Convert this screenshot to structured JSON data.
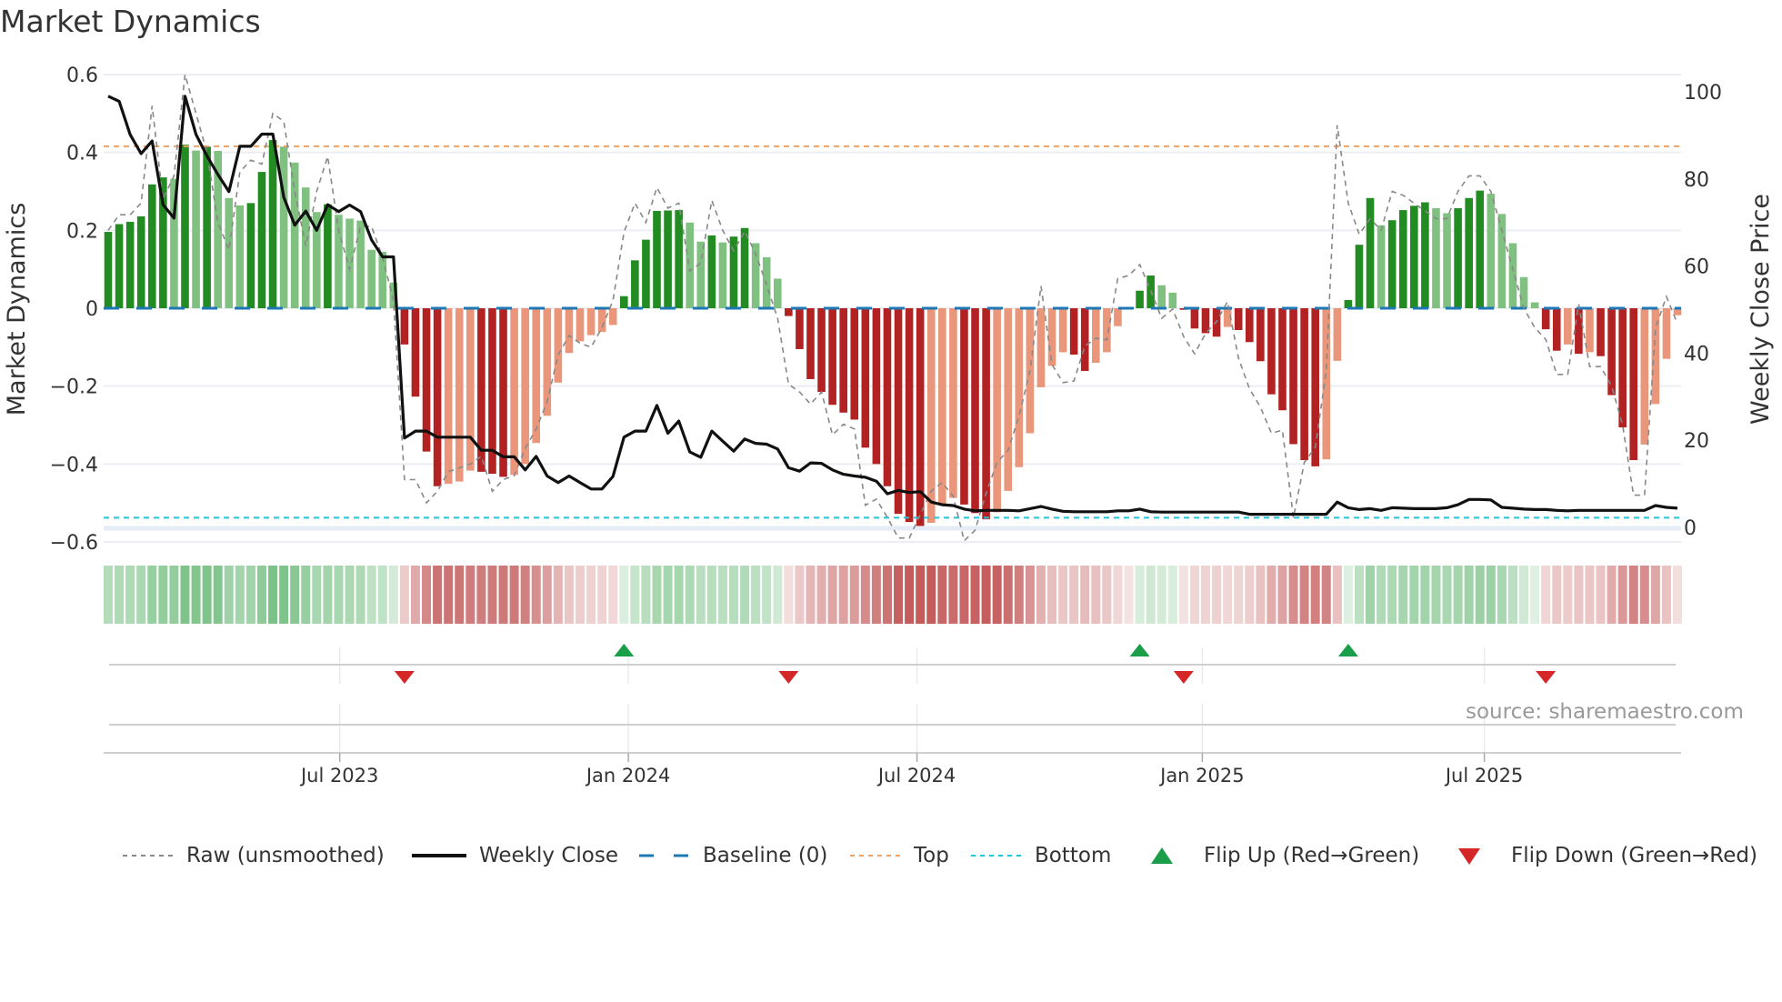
{
  "title": "Market Dynamics",
  "source": "source: sharemaestro.com",
  "colors": {
    "bar_green_dark": "#228b22",
    "bar_green_light": "#80c080",
    "bar_red_dark": "#b22222",
    "bar_red_light": "#e9967a",
    "heat_green": "#5fb56e",
    "heat_red": "#c45c5c",
    "raw": "#888888",
    "close": "#111111",
    "baseline": "#1f77b4",
    "top": "#f0a060",
    "bottom": "#22c5d8",
    "flip_up": "#1a9e4a",
    "flip_down": "#d62728"
  },
  "legend": [
    {
      "key": "raw",
      "label": "Raw (unsmoothed)"
    },
    {
      "key": "close",
      "label": "Weekly Close"
    },
    {
      "key": "baseline",
      "label": "Baseline (0)"
    },
    {
      "key": "top",
      "label": "Top"
    },
    {
      "key": "bottom",
      "label": "Bottom"
    },
    {
      "key": "flip_up",
      "label": "Flip Up (Red→Green)"
    },
    {
      "key": "flip_down",
      "label": "Flip Down (Green→Red)"
    }
  ],
  "chart_data": {
    "type": "bar",
    "title": "Market Dynamics",
    "xlabel": "",
    "ylabel": "Market Dynamics",
    "y2label": "Weekly Close Price",
    "ylim": [
      -0.6,
      0.6
    ],
    "y2lim": [
      0,
      100
    ],
    "yticks": [
      0.6,
      0.4,
      0.2,
      0,
      -0.2,
      -0.4,
      -0.6
    ],
    "ytick_labels": [
      "0.6",
      "0.4",
      "0.2",
      "0",
      "−0.2",
      "−0.4",
      "−0.6"
    ],
    "y2ticks": [
      100,
      80,
      60,
      40,
      20,
      0
    ],
    "y2tick_labels": [
      "100",
      "80",
      "60",
      "40",
      "20",
      "0"
    ],
    "x_unit": "week index (0 = first weekly bar, early Feb 2023)",
    "xticks": [
      {
        "week": 21.1,
        "label": "Jul 2023"
      },
      {
        "week": 47.4,
        "label": "Jan 2024"
      },
      {
        "week": 73.7,
        "label": "Jul 2024"
      },
      {
        "week": 99.7,
        "label": "Jan 2025"
      },
      {
        "week": 125.4,
        "label": "Jul 2025"
      }
    ],
    "top_level": 0.416,
    "bottom_level": -0.538,
    "baseline": 0,
    "grid": true,
    "legend_position": "bottom",
    "values": [
      0.196,
      0.216,
      0.222,
      0.236,
      0.318,
      0.336,
      0.332,
      0.42,
      0.405,
      0.415,
      0.404,
      0.283,
      0.264,
      0.27,
      0.35,
      0.432,
      0.415,
      0.374,
      0.31,
      0.247,
      0.267,
      0.24,
      0.23,
      0.225,
      0.15,
      0.145,
      0.066,
      -0.093,
      -0.227,
      -0.368,
      -0.457,
      -0.451,
      -0.445,
      -0.417,
      -0.42,
      -0.425,
      -0.433,
      -0.428,
      -0.4,
      -0.346,
      -0.276,
      -0.191,
      -0.115,
      -0.085,
      -0.069,
      -0.061,
      -0.043,
      0.031,
      0.123,
      0.176,
      0.25,
      0.251,
      0.252,
      0.22,
      0.171,
      0.187,
      0.169,
      0.184,
      0.206,
      0.167,
      0.131,
      0.076,
      -0.02,
      -0.105,
      -0.182,
      -0.215,
      -0.248,
      -0.268,
      -0.286,
      -0.358,
      -0.4,
      -0.457,
      -0.528,
      -0.549,
      -0.559,
      -0.551,
      -0.506,
      -0.487,
      -0.504,
      -0.526,
      -0.542,
      -0.524,
      -0.469,
      -0.408,
      -0.321,
      -0.203,
      -0.148,
      -0.113,
      -0.119,
      -0.161,
      -0.14,
      -0.113,
      -0.046,
      0,
      0.045,
      0.084,
      0.059,
      0.04,
      -0.004,
      -0.052,
      -0.064,
      -0.073,
      -0.048,
      -0.056,
      -0.087,
      -0.136,
      -0.221,
      -0.262,
      -0.349,
      -0.39,
      -0.406,
      -0.388,
      -0.135,
      0.021,
      0.163,
      0.283,
      0.213,
      0.226,
      0.252,
      0.263,
      0.272,
      0.257,
      0.244,
      0.257,
      0.283,
      0.302,
      0.294,
      0.242,
      0.167,
      0.08,
      0.015,
      -0.054,
      -0.109,
      -0.093,
      -0.117,
      -0.113,
      -0.123,
      -0.223,
      -0.306,
      -0.39,
      -0.35,
      -0.246,
      -0.13,
      -0.018
    ],
    "raw": [
      0.2,
      0.24,
      0.24,
      0.27,
      0.52,
      0.28,
      0.34,
      0.6,
      0.5,
      0.4,
      0.22,
      0.15,
      0.35,
      0.38,
      0.37,
      0.5,
      0.48,
      0.3,
      0.16,
      0.3,
      0.39,
      0.2,
      0.1,
      0.21,
      0.21,
      0.13,
      0.02,
      -0.44,
      -0.44,
      -0.5,
      -0.47,
      -0.42,
      -0.41,
      -0.4,
      -0.38,
      -0.47,
      -0.44,
      -0.43,
      -0.36,
      -0.31,
      -0.24,
      -0.12,
      -0.07,
      -0.09,
      -0.1,
      -0.05,
      0.02,
      0.195,
      0.27,
      0.22,
      0.31,
      0.257,
      0.27,
      0.096,
      0.116,
      0.277,
      0.2,
      0.147,
      0.198,
      0.14,
      0.06,
      -0.026,
      -0.195,
      -0.215,
      -0.246,
      -0.215,
      -0.325,
      -0.298,
      -0.31,
      -0.506,
      -0.49,
      -0.537,
      -0.59,
      -0.59,
      -0.53,
      -0.47,
      -0.447,
      -0.483,
      -0.597,
      -0.57,
      -0.475,
      -0.396,
      -0.365,
      -0.278,
      -0.16,
      0.057,
      -0.144,
      -0.191,
      -0.187,
      -0.097,
      -0.077,
      -0.081,
      0.076,
      0.084,
      0.112,
      0.045,
      -0.026,
      -0.002,
      -0.073,
      -0.117,
      -0.065,
      -0.034,
      0.017,
      -0.128,
      -0.207,
      -0.254,
      -0.321,
      -0.313,
      -0.538,
      -0.396,
      -0.357,
      -0.16,
      0.47,
      0.27,
      0.19,
      0.23,
      0.2,
      0.3,
      0.29,
      0.27,
      0.25,
      0.23,
      0.23,
      0.3,
      0.34,
      0.34,
      0.3,
      0.2,
      0.1,
      0,
      -0.05,
      -0.08,
      -0.17,
      -0.17,
      0.01,
      -0.15,
      -0.15,
      -0.2,
      -0.3,
      -0.48,
      -0.48,
      -0.05,
      0.03,
      -0.04
    ],
    "close": [
      99,
      97.8,
      90.2,
      85.8,
      88.7,
      74.1,
      71,
      99,
      90.2,
      85.3,
      81,
      77.1,
      87.5,
      87.5,
      90.3,
      90.3,
      75.8,
      69.4,
      72.6,
      68.2,
      74.1,
      72.5,
      74,
      72.5,
      66,
      62.1,
      62.1,
      20.5,
      22.1,
      22.1,
      20.7,
      20.7,
      20.7,
      20.7,
      17.7,
      17.7,
      16.2,
      16.2,
      13.2,
      16.3,
      11.8,
      10.3,
      11.8,
      10.3,
      8.8,
      8.8,
      11.7,
      20.7,
      22.1,
      22.1,
      28,
      21.6,
      24.4,
      17.3,
      16.1,
      22.1,
      19.8,
      17.5,
      20.3,
      19.3,
      19.1,
      18,
      13.7,
      12.9,
      14.8,
      14.7,
      13.2,
      12.2,
      11.8,
      11.5,
      10.6,
      7.7,
      8.5,
      8,
      8.2,
      5.8,
      5.2,
      5,
      4.2,
      3.8,
      3.9,
      3.9,
      3.9,
      3.8,
      4.3,
      4.8,
      4.2,
      3.7,
      3.6,
      3.6,
      3.6,
      3.6,
      3.8,
      3.8,
      4.2,
      3.6,
      3.5,
      3.5,
      3.5,
      3.5,
      3.5,
      3.5,
      3.5,
      3.5,
      3,
      3,
      3,
      3,
      3,
      3,
      3,
      3,
      5.8,
      4.5,
      4.1,
      4.3,
      3.9,
      4.5,
      4.4,
      4.3,
      4.3,
      4.3,
      4.5,
      5.2,
      6.4,
      6.4,
      6.3,
      4.6,
      4.4,
      4.2,
      4.1,
      4.1,
      3.9,
      3.8,
      3.9,
      3.9,
      3.9,
      3.9,
      3.9,
      3.9,
      3.9,
      5,
      4.6,
      4.4
    ],
    "flips": [
      {
        "week": 27,
        "type": "down"
      },
      {
        "week": 47,
        "type": "up"
      },
      {
        "week": 62,
        "type": "down"
      },
      {
        "week": 94,
        "type": "up"
      },
      {
        "week": 98,
        "type": "down"
      },
      {
        "week": 113,
        "type": "up"
      },
      {
        "week": 131,
        "type": "down"
      }
    ]
  }
}
